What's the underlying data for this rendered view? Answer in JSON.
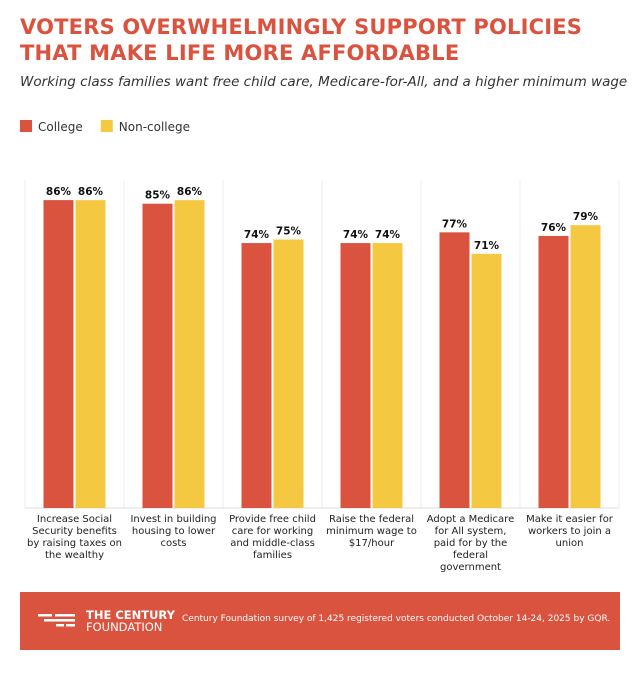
{
  "chart_data": {
    "type": "bar",
    "title": "VOTERS OVERWHELMINGLY SUPPORT POLICIES THAT MAKE LIFE MORE AFFORDABLE",
    "subtitle": "Working class families want free child care, Medicare-for-All, and a higher minimum wage",
    "categories": [
      "Increase Social Security benefits by raising taxes on the wealthy",
      "Invest in building housing to lower costs",
      "Provide free child care for working and middle-class families",
      "Raise the federal minimum wage to $17/hour",
      "Adopt a Medicare for All system, paid for by the federal government",
      "Make it easier for workers to join a union"
    ],
    "series": [
      {
        "name": "College",
        "color": "#d9533f",
        "values": [
          86,
          85,
          74,
          74,
          77,
          76
        ],
        "value_labels": [
          "86%",
          "85%",
          "74%",
          "74%",
          "77%",
          "76%"
        ]
      },
      {
        "name": "Non-college",
        "color": "#f5c842",
        "values": [
          86,
          86,
          75,
          74,
          71,
          79
        ],
        "value_labels": [
          "86%",
          "86%",
          "75%",
          "74%",
          "71%",
          "79%"
        ]
      }
    ],
    "logo": [
      "THE CENTURY",
      "FOUNDATION"
    ],
    "source": "Century Foundation survey of 1,425 registered voters conducted October 14-24, 2025 by GQR."
  }
}
